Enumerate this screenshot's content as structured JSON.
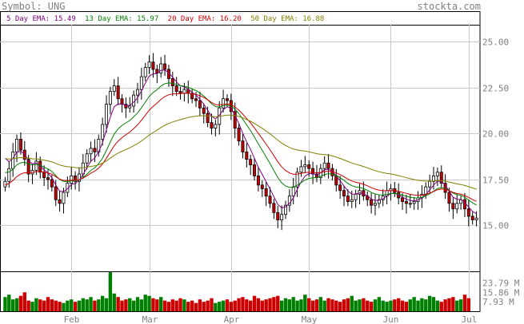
{
  "header": {
    "symbol_text": "Symbol: UNG",
    "site": "stockta.com"
  },
  "legend": [
    {
      "label": "5 Day EMA: 15.49",
      "color": "#800080"
    },
    {
      "label": "13 Day EMA: 15.97",
      "color": "#008000"
    },
    {
      "label": "20 Day EMA: 16.20",
      "color": "#cc0000"
    },
    {
      "label": "50 Day EMA: 16.88",
      "color": "#808000"
    }
  ],
  "colors": {
    "up_candle": "#ffffff",
    "down_candle": "#cc0000",
    "vol_up": "#008000",
    "vol_down": "#cc0000",
    "grid": "#c8c8c8",
    "axis_text": "#808080"
  },
  "chart_data": [
    {
      "type": "candlestick",
      "title": "",
      "y_ticks": [
        "25.00",
        "22.50",
        "20.00",
        "17.50",
        "15.00"
      ],
      "ylim": [
        12.5,
        25.8
      ],
      "x_ticks": [
        {
          "label": "Feb",
          "index": 17
        },
        {
          "label": "Mar",
          "index": 37
        },
        {
          "label": "Apr",
          "index": 58
        },
        {
          "label": "May",
          "index": 78
        },
        {
          "label": "Jun",
          "index": 99
        },
        {
          "label": "Jul",
          "index": 119
        }
      ],
      "grid": true,
      "close": [
        17.4,
        18.1,
        19.0,
        19.7,
        19.1,
        18.6,
        17.8,
        18.0,
        18.5,
        17.9,
        17.6,
        17.5,
        17.1,
        16.4,
        16.2,
        16.8,
        17.3,
        17.7,
        17.4,
        17.8,
        18.4,
        18.9,
        19.2,
        19.0,
        19.7,
        20.5,
        21.6,
        22.3,
        22.6,
        21.9,
        21.6,
        21.4,
        21.5,
        22.1,
        22.4,
        23.1,
        23.6,
        23.9,
        23.5,
        23.3,
        23.8,
        23.5,
        23.0,
        22.6,
        22.3,
        22.2,
        22.4,
        22.2,
        21.9,
        21.8,
        21.4,
        21.1,
        20.6,
        20.3,
        20.5,
        21.4,
        21.9,
        21.8,
        21.2,
        20.3,
        19.6,
        19.0,
        18.6,
        18.3,
        17.7,
        17.2,
        17.0,
        16.6,
        16.2,
        15.7,
        15.3,
        15.6,
        16.1,
        16.6,
        17.1,
        17.9,
        18.2,
        18.3,
        18.1,
        17.8,
        17.6,
        18.1,
        18.4,
        18.1,
        17.7,
        17.2,
        16.9,
        16.6,
        16.3,
        16.4,
        16.7,
        16.9,
        16.6,
        16.4,
        16.1,
        16.2,
        16.4,
        16.6,
        16.9,
        17.0,
        16.8,
        16.5,
        16.3,
        16.2,
        16.2,
        16.3,
        16.5,
        16.7,
        17.1,
        17.4,
        17.7,
        17.9,
        17.3,
        16.8,
        16.2,
        15.9,
        16.2,
        16.4,
        15.9,
        15.5,
        15.3,
        15.4
      ],
      "emas": [
        {
          "name": "5 Day EMA",
          "final": 15.49
        },
        {
          "name": "13 Day EMA",
          "final": 15.97
        },
        {
          "name": "20 Day EMA",
          "final": 16.2
        },
        {
          "name": "50 Day EMA",
          "final": 16.88
        }
      ],
      "volume": {
        "unit": "M",
        "labels": [
          "23.79 M",
          "15.86 M",
          "7.93 M"
        ],
        "ylim": [
          0,
          31.7
        ],
        "values": [
          12,
          14,
          10,
          11,
          13,
          16,
          9,
          8,
          11,
          10,
          9,
          12,
          10,
          9,
          8,
          7,
          9,
          10,
          8,
          9,
          11,
          10,
          12,
          9,
          10,
          13,
          11,
          33,
          15,
          12,
          9,
          10,
          11,
          9,
          12,
          10,
          14,
          13,
          11,
          10,
          12,
          9,
          8,
          10,
          9,
          11,
          10,
          8,
          9,
          7,
          10,
          8,
          9,
          11,
          7,
          8,
          9,
          10,
          8,
          9,
          11,
          12,
          10,
          9,
          13,
          11,
          9,
          10,
          11,
          12,
          13,
          9,
          11,
          10,
          12,
          9,
          10,
          14,
          11,
          9,
          10,
          12,
          9,
          11,
          10,
          9,
          8,
          10,
          11,
          13,
          9,
          10,
          11,
          9,
          8,
          10,
          12,
          9,
          8,
          9,
          10,
          11,
          9,
          8,
          10,
          12,
          9,
          11,
          10,
          13,
          12,
          9,
          8,
          10,
          11,
          12,
          9,
          10,
          14,
          11
        ]
      }
    }
  ]
}
